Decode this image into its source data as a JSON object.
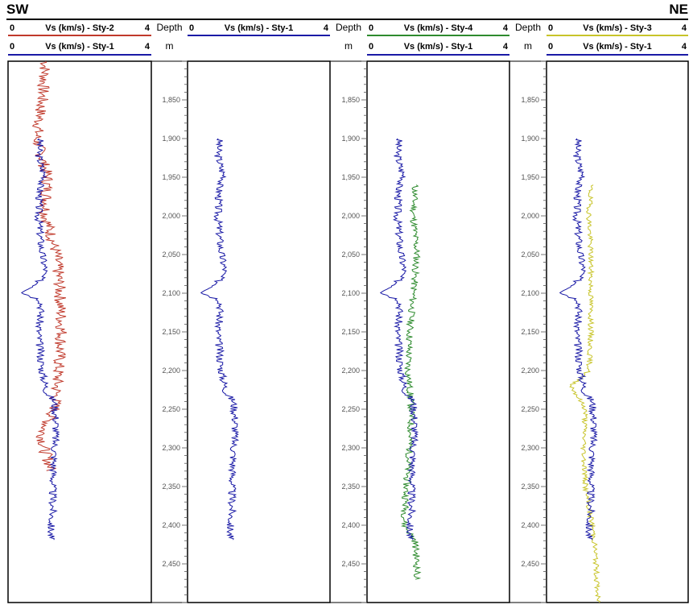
{
  "corners": {
    "left": "SW",
    "right": "NE"
  },
  "tracks": [
    {
      "header1": {
        "min": "0",
        "max": "4",
        "label": "Vs (km/s) - Sty-2",
        "color": "#c0392b"
      },
      "header2": {
        "min": "0",
        "max": "4",
        "label": "Vs (km/s) - Sty-1",
        "color": "#1a1aa6"
      }
    },
    {
      "header1": {
        "min": "0",
        "max": "4",
        "label": "Vs (km/s) - Sty-1",
        "color": "#1a1aa6"
      },
      "header2": null
    },
    {
      "header1": {
        "min": "0",
        "max": "4",
        "label": "Vs (km/s) - Sty-4",
        "color": "#2e8b2e"
      },
      "header2": {
        "min": "0",
        "max": "4",
        "label": "Vs (km/s) - Sty-1",
        "color": "#1a1aa6"
      }
    },
    {
      "header1": {
        "min": "0",
        "max": "4",
        "label": "Vs (km/s) - Sty-3",
        "color": "#c8c42a"
      },
      "header2": {
        "min": "0",
        "max": "4",
        "label": "Vs (km/s) - Sty-1",
        "color": "#1a1aa6"
      }
    }
  ],
  "depth_track": {
    "label": "Depth",
    "unit": "m"
  },
  "chart_data": {
    "type": "line",
    "title": "",
    "x_axis": {
      "label": "Vs (km/s)",
      "range": [
        0,
        4
      ]
    },
    "y_axis": {
      "label": "Depth",
      "unit": "m",
      "range": [
        1800,
        2500
      ],
      "inverted": true,
      "ticks": [
        "1,850",
        "1,900",
        "1,950",
        "2,000",
        "2,050",
        "2,100",
        "2,150",
        "2,200",
        "2,250",
        "2,300",
        "2,350",
        "2,400",
        "2,450"
      ]
    },
    "colors": {
      "Sty-1": "#1a1aa6",
      "Sty-2": "#c0392b",
      "Sty-3": "#c8c42a",
      "Sty-4": "#2e8b2e"
    },
    "series": [
      {
        "name": "Vs (km/s) - Sty-1",
        "depth": [
          1900,
          1920,
          1940,
          1950,
          1960,
          2000,
          2050,
          2070,
          2090,
          2100,
          2110,
          2150,
          2200,
          2230,
          2240,
          2270,
          2300,
          2350,
          2380,
          2400,
          2420
        ],
        "vs": [
          0.9,
          0.85,
          0.95,
          1.05,
          0.9,
          0.85,
          0.95,
          1.05,
          0.8,
          0.45,
          0.95,
          0.85,
          0.95,
          1.1,
          1.3,
          1.35,
          1.3,
          1.25,
          1.25,
          1.2,
          1.2
        ]
      },
      {
        "name": "Vs (km/s) - Sty-2",
        "depth": [
          1800,
          1850,
          1900,
          1950,
          2000,
          2050,
          2100,
          2150,
          2200,
          2250,
          2280,
          2300,
          2320,
          2330
        ],
        "vs": [
          1.05,
          0.95,
          0.8,
          1.1,
          1.05,
          1.35,
          1.45,
          1.5,
          1.4,
          1.3,
          0.95,
          1.0,
          1.15,
          1.2
        ]
      },
      {
        "name": "Vs (km/s) - Sty-4",
        "depth": [
          1960,
          2000,
          2050,
          2100,
          2150,
          2200,
          2250,
          2300,
          2350,
          2400,
          2420,
          2450,
          2470
        ],
        "vs": [
          1.35,
          1.3,
          1.4,
          1.3,
          1.2,
          1.15,
          1.25,
          1.2,
          1.1,
          1.05,
          1.35,
          1.4,
          1.4
        ]
      },
      {
        "name": "Vs (km/s) - Sty-3",
        "depth": [
          1960,
          2000,
          2050,
          2100,
          2150,
          2200,
          2220,
          2250,
          2300,
          2350,
          2380,
          2400,
          2420,
          2450,
          2500
        ],
        "vs": [
          1.25,
          1.2,
          1.25,
          1.25,
          1.25,
          1.2,
          0.7,
          1.1,
          1.05,
          1.1,
          1.2,
          1.3,
          1.35,
          1.4,
          1.45
        ]
      }
    ]
  }
}
